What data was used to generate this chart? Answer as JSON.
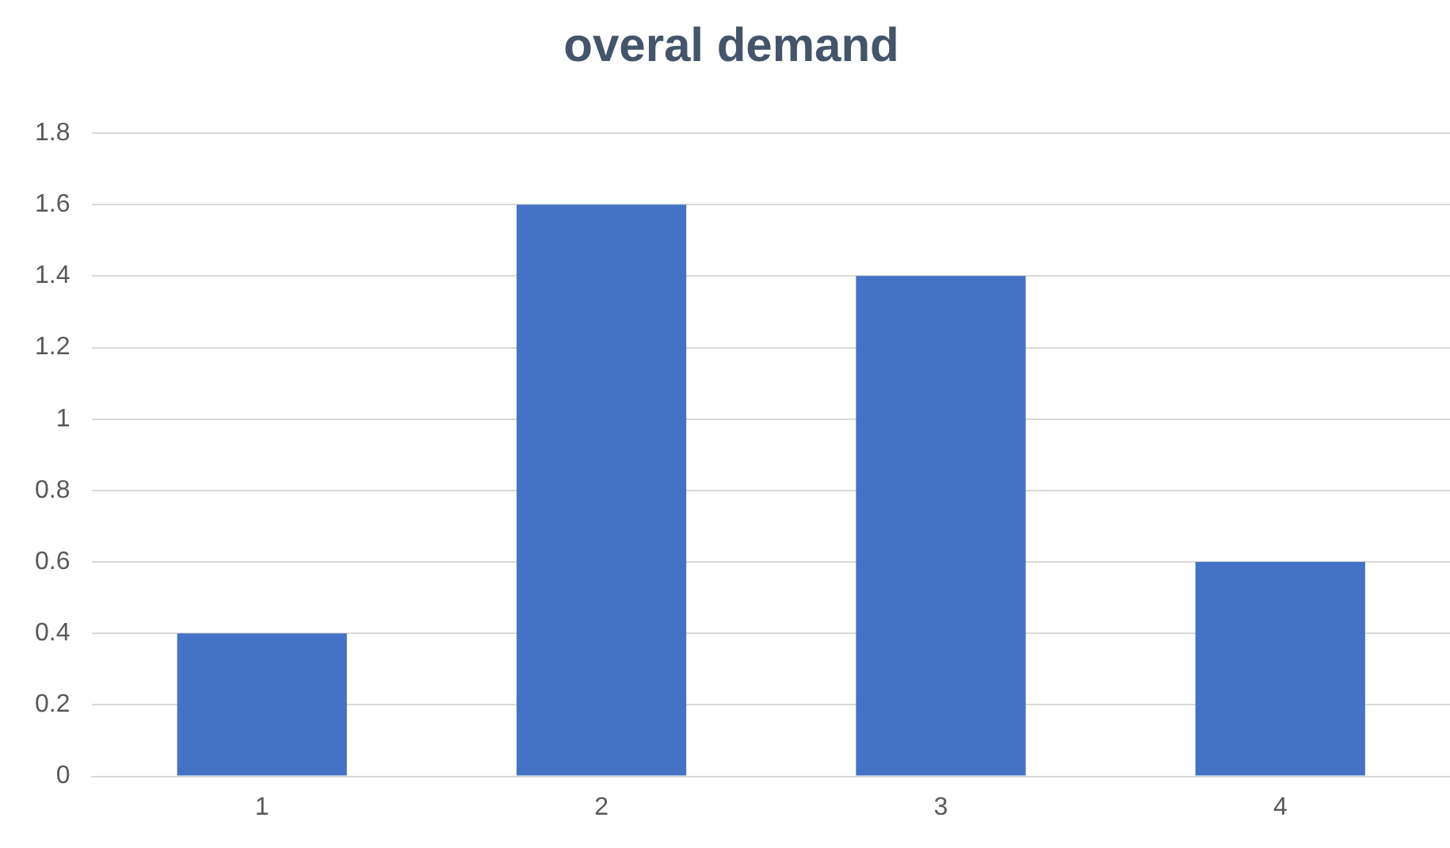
{
  "chart_data": {
    "type": "bar",
    "title": "overal demand",
    "categories": [
      "1",
      "2",
      "3",
      "4"
    ],
    "values": [
      0.4,
      1.6,
      1.4,
      0.6
    ],
    "color": "#4472c4",
    "ylim": [
      0,
      1.8
    ],
    "yticks": [
      0,
      0.2,
      0.4,
      0.6,
      0.8,
      1,
      1.2,
      1.4,
      1.6,
      1.8
    ],
    "grid": "y",
    "legend": false
  }
}
